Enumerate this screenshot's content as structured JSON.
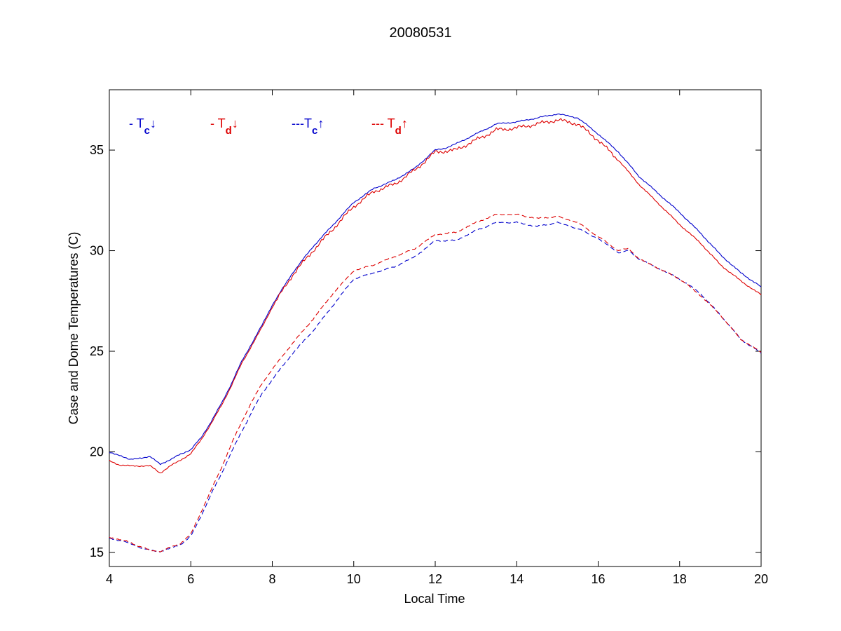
{
  "chart_data": {
    "type": "line",
    "title": "20080531",
    "xlabel": "Local Time",
    "ylabel": "Case and Dome Temperatures (C)",
    "xlim": [
      4,
      20
    ],
    "ylim": [
      14.3,
      38.0
    ],
    "xticks": [
      4,
      6,
      8,
      10,
      12,
      14,
      16,
      18,
      20
    ],
    "yticks": [
      15,
      20,
      25,
      30,
      35
    ],
    "grid": false,
    "legend_position": "top-left inside plot",
    "colors": {
      "blue": "#0000cc",
      "red": "#dd0000"
    },
    "legend": [
      {
        "prefix": "- T",
        "sub": "c",
        "arrow": "↓",
        "color": "#0000cc"
      },
      {
        "prefix": "- T",
        "sub": "d",
        "arrow": "↓",
        "color": "#dd0000"
      },
      {
        "prefix": "---T",
        "sub": "c",
        "arrow": "↑",
        "color": "#0000cc"
      },
      {
        "prefix": "--- T",
        "sub": "d",
        "arrow": "↑",
        "color": "#dd0000"
      }
    ],
    "series": [
      {
        "style": "solid",
        "color": "#0000cc",
        "x": [
          4.0,
          4.25,
          4.5,
          4.75,
          5.0,
          5.25,
          5.5,
          5.75,
          6.0,
          6.25,
          6.5,
          6.75,
          7.0,
          7.25,
          7.5,
          7.75,
          8.0,
          8.5,
          9.0,
          9.5,
          10.0,
          10.5,
          11.0,
          11.5,
          12.0,
          12.25,
          12.5,
          13.0,
          13.5,
          14.0,
          14.5,
          15.0,
          15.5,
          16.0,
          16.5,
          17.0,
          17.5,
          18.0,
          18.5,
          19.0,
          19.5,
          20.0
        ],
        "y": [
          19.95,
          19.85,
          19.6,
          19.7,
          19.75,
          19.4,
          19.6,
          19.9,
          20.1,
          20.7,
          21.5,
          22.4,
          23.4,
          24.5,
          25.4,
          26.3,
          27.3,
          28.9,
          30.2,
          31.3,
          32.4,
          33.1,
          33.5,
          34.1,
          35.0,
          35.1,
          35.3,
          35.8,
          36.3,
          36.4,
          36.6,
          36.8,
          36.6,
          35.8,
          34.9,
          33.7,
          32.8,
          31.9,
          30.9,
          29.8,
          28.9,
          28.2
        ]
      },
      {
        "style": "solid",
        "color": "#dd0000",
        "x": [
          4.0,
          4.25,
          4.5,
          4.75,
          5.0,
          5.25,
          5.5,
          5.75,
          6.0,
          6.25,
          6.5,
          6.75,
          7.0,
          7.25,
          7.5,
          7.75,
          8.0,
          8.5,
          9.0,
          9.5,
          10.0,
          10.5,
          11.0,
          11.5,
          12.0,
          12.25,
          12.5,
          13.0,
          13.5,
          14.0,
          14.5,
          15.0,
          15.5,
          16.0,
          16.5,
          17.0,
          17.5,
          18.0,
          18.5,
          19.0,
          19.5,
          20.0
        ],
        "y": [
          19.55,
          19.35,
          19.3,
          19.3,
          19.3,
          18.95,
          19.3,
          19.6,
          19.9,
          20.6,
          21.4,
          22.3,
          23.3,
          24.4,
          25.3,
          26.2,
          27.2,
          28.8,
          30.0,
          31.1,
          32.2,
          32.95,
          33.3,
          34.0,
          34.9,
          34.95,
          35.0,
          35.5,
          36.0,
          36.1,
          36.3,
          36.5,
          36.3,
          35.5,
          34.5,
          33.3,
          32.3,
          31.3,
          30.4,
          29.3,
          28.5,
          27.8
        ]
      },
      {
        "style": "dashed",
        "color": "#0000cc",
        "x": [
          4.0,
          4.25,
          4.5,
          4.75,
          5.0,
          5.25,
          5.5,
          5.75,
          6.0,
          6.25,
          6.5,
          6.75,
          7.0,
          7.25,
          7.5,
          7.75,
          8.0,
          8.5,
          9.0,
          9.5,
          10.0,
          10.5,
          11.0,
          11.5,
          12.0,
          12.5,
          13.0,
          13.5,
          14.0,
          14.5,
          15.0,
          15.5,
          16.0,
          16.5,
          16.75,
          17.0,
          17.5,
          18.0,
          18.5,
          19.0,
          19.5,
          20.0
        ],
        "y": [
          15.7,
          15.6,
          15.45,
          15.25,
          15.1,
          15.05,
          15.2,
          15.4,
          15.8,
          16.8,
          17.9,
          18.9,
          20.0,
          21.0,
          22.0,
          22.9,
          23.6,
          24.9,
          26.0,
          27.3,
          28.6,
          28.9,
          29.2,
          29.7,
          30.5,
          30.5,
          31.0,
          31.4,
          31.4,
          31.2,
          31.4,
          31.1,
          30.6,
          29.9,
          30.0,
          29.6,
          29.1,
          28.6,
          27.9,
          26.8,
          25.6,
          24.9
        ]
      },
      {
        "style": "dashed",
        "color": "#dd0000",
        "x": [
          4.0,
          4.25,
          4.5,
          4.75,
          5.0,
          5.25,
          5.5,
          5.75,
          6.0,
          6.25,
          6.5,
          6.75,
          7.0,
          7.25,
          7.5,
          7.75,
          8.0,
          8.5,
          9.0,
          9.5,
          10.0,
          10.5,
          11.0,
          11.5,
          12.0,
          12.5,
          13.0,
          13.5,
          14.0,
          14.5,
          15.0,
          15.5,
          16.0,
          16.5,
          16.75,
          17.0,
          17.5,
          18.0,
          18.5,
          19.0,
          19.5,
          20.0
        ],
        "y": [
          15.75,
          15.65,
          15.5,
          15.3,
          15.1,
          15.05,
          15.25,
          15.45,
          15.9,
          17.0,
          18.1,
          19.2,
          20.4,
          21.5,
          22.5,
          23.4,
          24.1,
          25.4,
          26.6,
          27.9,
          29.0,
          29.3,
          29.7,
          30.1,
          30.8,
          30.9,
          31.4,
          31.8,
          31.8,
          31.6,
          31.7,
          31.4,
          30.7,
          30.0,
          30.1,
          29.6,
          29.1,
          28.6,
          27.8,
          26.8,
          25.6,
          24.95
        ]
      }
    ]
  }
}
